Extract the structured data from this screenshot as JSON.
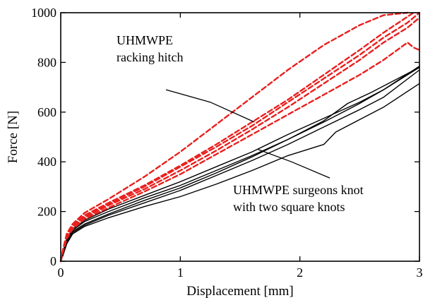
{
  "chart_data": {
    "type": "line",
    "title": "",
    "xlabel": "Displacement [mm]",
    "ylabel": "Force [N]",
    "xlim": [
      0,
      3
    ],
    "ylim": [
      0,
      1000
    ],
    "xticks": [
      0,
      1,
      2,
      3
    ],
    "xtick_labels": [
      "0",
      "1",
      "2",
      "3"
    ],
    "yticks": [
      0,
      200,
      400,
      600,
      800,
      1000
    ],
    "ytick_labels": [
      "0",
      "200",
      "400",
      "600",
      "800",
      "1000"
    ],
    "grid": false,
    "legend": "none",
    "colors": {
      "black_series": "#000000",
      "red_series": "#e8201e"
    },
    "annotations": [
      {
        "lines": [
          "UHMWPE",
          "racking hitch"
        ],
        "arrow_points": [
          [
            0.88,
            690
          ],
          [
            1.25,
            640
          ],
          [
            1.62,
            560
          ]
        ]
      },
      {
        "lines": [
          "UHMWPE surgeons knot",
          "with two square knots"
        ],
        "arrow_points": [
          [
            2.25,
            335
          ],
          [
            1.93,
            400
          ],
          [
            1.65,
            450
          ]
        ]
      }
    ],
    "series": [
      {
        "group": "UHMWPE surgeons knot with two square knots",
        "style": "solid",
        "color": "#000000",
        "x": [
          0,
          0.02,
          0.05,
          0.1,
          0.2,
          0.4,
          0.7,
          1.0,
          1.3,
          1.6,
          1.9,
          2.2,
          2.5,
          2.7,
          3.0
        ],
        "y": [
          0,
          40,
          90,
          130,
          165,
          210,
          265,
          320,
          380,
          440,
          510,
          575,
          640,
          690,
          785
        ]
      },
      {
        "group": "UHMWPE surgeons knot with two square knots",
        "style": "solid",
        "color": "#000000",
        "x": [
          0,
          0.02,
          0.05,
          0.1,
          0.2,
          0.4,
          0.7,
          1.0,
          1.3,
          1.6,
          1.9,
          2.2,
          2.5,
          2.7,
          3.0
        ],
        "y": [
          0,
          35,
          85,
          125,
          160,
          200,
          255,
          305,
          365,
          425,
          490,
          560,
          635,
          690,
          780
        ]
      },
      {
        "group": "UHMWPE surgeons knot with two square knots",
        "style": "solid",
        "color": "#000000",
        "x": [
          0,
          0.02,
          0.05,
          0.1,
          0.2,
          0.4,
          0.7,
          1.0,
          1.3,
          1.6,
          1.9,
          2.2,
          2.4,
          2.6,
          3.0
        ],
        "y": [
          0,
          30,
          80,
          120,
          150,
          190,
          245,
          295,
          355,
          420,
          490,
          565,
          635,
          680,
          780
        ]
      },
      {
        "group": "UHMWPE surgeons knot with two square knots",
        "style": "solid",
        "color": "#000000",
        "x": [
          0,
          0.02,
          0.05,
          0.1,
          0.2,
          0.4,
          0.7,
          1.0,
          1.3,
          1.6,
          1.9,
          2.2,
          2.5,
          2.7,
          3.0
        ],
        "y": [
          0,
          30,
          75,
          115,
          145,
          185,
          235,
          285,
          345,
          405,
          470,
          540,
          610,
          660,
          770
        ]
      },
      {
        "group": "UHMWPE surgeons knot with two square knots",
        "style": "solid",
        "color": "#000000",
        "x": [
          0,
          0.02,
          0.05,
          0.1,
          0.2,
          0.4,
          0.7,
          1.0,
          1.3,
          1.6,
          1.9,
          2.2,
          2.3,
          2.5,
          2.7,
          3.0
        ],
        "y": [
          0,
          25,
          70,
          110,
          140,
          175,
          220,
          260,
          310,
          365,
          425,
          470,
          520,
          570,
          620,
          715
        ]
      },
      {
        "group": "UHMWPE racking hitch",
        "style": "dashed",
        "color": "#e8201e",
        "x": [
          0,
          0.02,
          0.05,
          0.1,
          0.2,
          0.4,
          0.7,
          1.0,
          1.3,
          1.6,
          1.9,
          2.2,
          2.5,
          2.7,
          2.9
        ],
        "y": [
          0,
          50,
          110,
          150,
          195,
          250,
          340,
          440,
          550,
          660,
          770,
          870,
          950,
          990,
          1000
        ]
      },
      {
        "group": "UHMWPE racking hitch",
        "style": "dashed",
        "color": "#e8201e",
        "x": [
          0,
          0.02,
          0.05,
          0.1,
          0.2,
          0.4,
          0.7,
          1.0,
          1.3,
          1.6,
          1.9,
          2.2,
          2.5,
          2.7,
          2.95
        ],
        "y": [
          0,
          45,
          100,
          145,
          185,
          235,
          305,
          385,
          470,
          560,
          650,
          750,
          850,
          920,
          1000
        ]
      },
      {
        "group": "UHMWPE racking hitch",
        "style": "dashed",
        "color": "#e8201e",
        "x": [
          0,
          0.02,
          0.05,
          0.1,
          0.2,
          0.4,
          0.7,
          1.0,
          1.3,
          1.6,
          1.9,
          2.2,
          2.5,
          2.7,
          2.9,
          3.0
        ],
        "y": [
          0,
          45,
          100,
          140,
          180,
          230,
          300,
          380,
          460,
          545,
          640,
          735,
          830,
          900,
          960,
          1000
        ]
      },
      {
        "group": "UHMWPE racking hitch",
        "style": "dashed",
        "color": "#e8201e",
        "x": [
          0,
          0.02,
          0.05,
          0.1,
          0.2,
          0.4,
          0.7,
          1.0,
          1.3,
          1.6,
          1.9,
          2.2,
          2.5,
          2.7,
          2.9,
          3.0
        ],
        "y": [
          0,
          45,
          95,
          135,
          175,
          225,
          290,
          365,
          445,
          530,
          620,
          715,
          810,
          880,
          940,
          980
        ]
      },
      {
        "group": "UHMWPE racking hitch",
        "style": "dashed",
        "color": "#e8201e",
        "x": [
          0,
          0.02,
          0.05,
          0.1,
          0.2,
          0.4,
          0.7,
          1.0,
          1.3,
          1.6,
          1.9,
          2.2,
          2.5,
          2.7,
          2.9,
          2.95,
          3.0
        ],
        "y": [
          0,
          40,
          90,
          130,
          170,
          215,
          280,
          350,
          430,
          510,
          590,
          670,
          750,
          810,
          880,
          860,
          850
        ]
      }
    ]
  }
}
